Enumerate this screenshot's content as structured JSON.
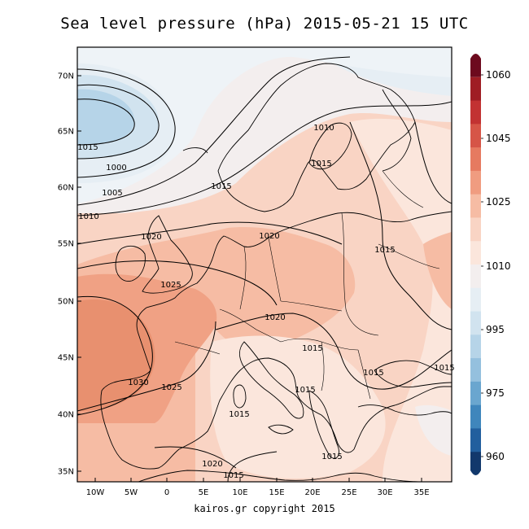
{
  "title": "Sea level pressure (hPa) 2015-05-21 15 UTC",
  "credit": "kairos.gr copyright 2015",
  "latitude_labels": [
    "70N",
    "65N",
    "60N",
    "55N",
    "50N",
    "45N",
    "40N",
    "35N"
  ],
  "longitude_labels": [
    "10W",
    "5W",
    "0",
    "5E",
    "10E",
    "15E",
    "20E",
    "25E",
    "30E",
    "35E"
  ],
  "colorbar": {
    "tick_labels": [
      "1060",
      "1045",
      "1025",
      "1010",
      "995",
      "975",
      "960"
    ],
    "colors": [
      "#6d0a1e",
      "#9f1d24",
      "#c23232",
      "#d65547",
      "#e67a60",
      "#f09c80",
      "#f6bca4",
      "#f9d4c4",
      "#fbe6dc",
      "#f3eeee",
      "#e6eef4",
      "#d1e3ef",
      "#b6d4e8",
      "#94c0de",
      "#6aa6cf",
      "#3f86bc",
      "#225f9e",
      "#12386c"
    ]
  },
  "isobar_labels": [
    "1010",
    "1015",
    "1000",
    "1005",
    "1010",
    "1015",
    "1015",
    "1020",
    "1020",
    "1015",
    "1025",
    "1020",
    "1015",
    "1015",
    "1030",
    "1025",
    "1015",
    "1015",
    "1015",
    "1020",
    "1015",
    "1015"
  ]
}
